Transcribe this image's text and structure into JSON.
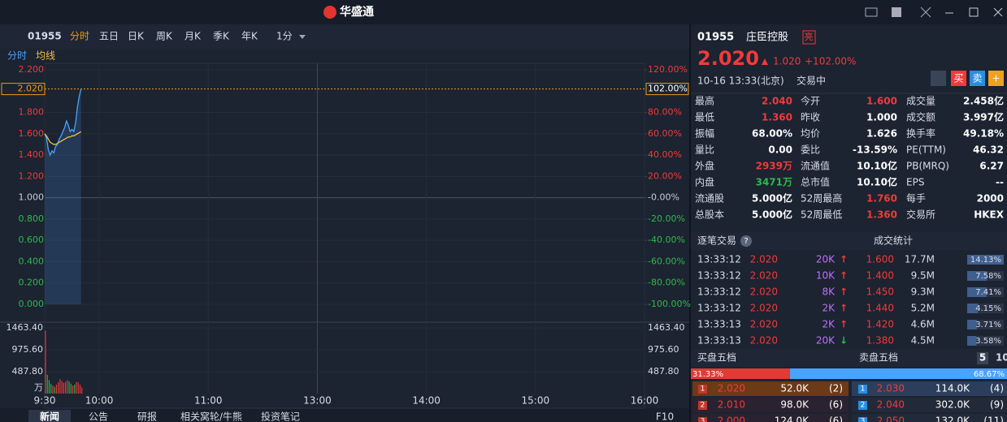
{
  "app": {
    "logo": "华盛通"
  },
  "toolbar": {
    "code": "01955",
    "tabs": [
      "分时",
      "五日",
      "日K",
      "周K",
      "月K",
      "季K",
      "年K"
    ],
    "interval": "1分"
  },
  "chart_data": {
    "type": "line",
    "x": [
      0,
      1,
      2,
      3,
      4,
      5,
      6,
      7,
      8,
      9,
      10,
      11,
      12,
      13,
      14,
      15,
      16,
      17,
      18,
      19,
      20
    ],
    "series": [
      {
        "name": "分时",
        "color": "#4aa3ff",
        "values": [
          1.6,
          1.56,
          1.45,
          1.4,
          1.44,
          1.42,
          1.48,
          1.5,
          1.55,
          1.58,
          1.62,
          1.66,
          1.72,
          1.68,
          1.62,
          1.64,
          1.62,
          1.7,
          1.85,
          1.95,
          2.02
        ]
      },
      {
        "name": "均线",
        "color": "#f0c040",
        "values": [
          1.6,
          1.58,
          1.55,
          1.52,
          1.51,
          1.5,
          1.5,
          1.51,
          1.52,
          1.53,
          1.54,
          1.55,
          1.56,
          1.57,
          1.57,
          1.58,
          1.58,
          1.59,
          1.6,
          1.61,
          1.62
        ]
      }
    ],
    "xlim": [
      0,
      330
    ],
    "xticks": [
      {
        "value": 0,
        "label": "9:30"
      },
      {
        "value": 30,
        "label": "10:00"
      },
      {
        "value": 90,
        "label": "11:00"
      },
      {
        "value": 150,
        "label": "13:00"
      },
      {
        "value": 210,
        "label": "14:00"
      },
      {
        "value": 270,
        "label": "15:00"
      },
      {
        "value": 330,
        "label": "16:00"
      }
    ],
    "ylim": [
      0,
      2.2
    ],
    "yticks": [
      {
        "value": 2.2,
        "label": "2.200"
      },
      {
        "value": 1.8,
        "label": "1.800"
      },
      {
        "value": 1.6,
        "label": "1.600"
      },
      {
        "value": 1.4,
        "label": "1.400"
      },
      {
        "value": 1.2,
        "label": "1.200"
      },
      {
        "value": 1,
        "label": "1.000"
      },
      {
        "value": 0.8,
        "label": "0.800"
      },
      {
        "value": 0.6,
        "label": "0.600"
      },
      {
        "value": 0.4,
        "label": "0.400"
      },
      {
        "value": 0.2,
        "label": "0.200"
      },
      {
        "value": 0,
        "label": "0.000"
      }
    ],
    "y2lim": [
      -100,
      120
    ],
    "y2ticks": [
      {
        "value": 120,
        "label": "120.00%"
      },
      {
        "value": 80,
        "label": "80.00%"
      },
      {
        "value": 60,
        "label": "60.00%"
      },
      {
        "value": 40,
        "label": "40.00%"
      },
      {
        "value": 20,
        "label": "20.00%"
      },
      {
        "value": 0,
        "label": "-0.00%"
      },
      {
        "value": -20,
        "label": "-20.00%"
      },
      {
        "value": -40,
        "label": "-40.00%"
      },
      {
        "value": -60,
        "label": "-60.00%"
      },
      {
        "value": -80,
        "label": "-80.00%"
      },
      {
        "value": -100,
        "label": "-100.00%"
      }
    ],
    "last": {
      "value": 2.02,
      "label": "2.020"
    },
    "last_pct": {
      "value": 102,
      "label": "102.00%"
    },
    "volume": {
      "values": [
        1400,
        420,
        300,
        220,
        180,
        150,
        200,
        250,
        320,
        280,
        240,
        260,
        300,
        270,
        220,
        180,
        200,
        260,
        250,
        200,
        140
      ],
      "ylim": [
        0,
        1463.4
      ],
      "yticks": [
        {
          "value": 1463.4,
          "label": "1463.40"
        },
        {
          "value": 975.6,
          "label": "975.60"
        },
        {
          "value": 487.8,
          "label": "487.80"
        }
      ],
      "unit": "万",
      "up_color": "#f23a3a",
      "down_color": "#2dbb4b"
    }
  },
  "bottom_tabs": [
    "新闻",
    "公告",
    "研报",
    "相关窝轮/牛熊",
    "投资笔记",
    "F10"
  ],
  "quote": {
    "code": "01955",
    "name": "庄臣控股",
    "badge": "亮",
    "price": "2.020",
    "change": "1.020",
    "change_pct": "+102.00%",
    "time": "10-16  13:33(北京)",
    "status": "交易中",
    "buy": "买",
    "sell": "卖",
    "add": "+"
  },
  "stats": [
    [
      [
        "最高",
        "2.040"
      ],
      [
        "今开",
        "1.600"
      ],
      [
        "成交量",
        "2.458亿"
      ]
    ],
    [
      [
        "最低",
        "1.360"
      ],
      [
        "昨收",
        "1.000"
      ],
      [
        "成交额",
        "3.997亿"
      ]
    ],
    [
      [
        "振幅",
        "68.00%"
      ],
      [
        "均价",
        "1.626"
      ],
      [
        "换手率",
        "49.18%"
      ]
    ],
    [
      [
        "量比",
        "0.00"
      ],
      [
        "委比",
        "-13.59%"
      ],
      [
        "PE(TTM)",
        "46.32"
      ]
    ],
    [
      [
        "外盘",
        "2939万"
      ],
      [
        "流通值",
        "10.10亿"
      ],
      [
        "PB(MRQ)",
        "6.27"
      ]
    ],
    [
      [
        "内盘",
        "3471万"
      ],
      [
        "总市值",
        "10.10亿"
      ],
      [
        "EPS",
        "--"
      ]
    ],
    [
      [
        "流通股",
        "5.000亿"
      ],
      [
        "52周最高",
        "1.760"
      ],
      [
        "每手",
        "2000"
      ]
    ],
    [
      [
        "总股本",
        "5.000亿"
      ],
      [
        "52周最低",
        "1.360"
      ],
      [
        "交易所",
        "HKEX"
      ]
    ]
  ],
  "trades": {
    "title": "逐笔交易",
    "help": "?",
    "stats_title": "成交统计",
    "rows": [
      [
        "13:33:12",
        "2.020",
        "20K",
        "↑"
      ],
      [
        "13:33:12",
        "2.020",
        "10K",
        "↑"
      ],
      [
        "13:33:12",
        "2.020",
        "8K",
        "↑"
      ],
      [
        "13:33:12",
        "2.020",
        "2K",
        "↑"
      ],
      [
        "13:33:13",
        "2.020",
        "2K",
        "↑"
      ],
      [
        "13:33:13",
        "2.020",
        "20K",
        "↓"
      ]
    ],
    "stat_rows": [
      [
        "1.600",
        "17.7M",
        {
          "value": 14.13,
          "label": "14.13%"
        }
      ],
      [
        "1.400",
        "9.5M",
        {
          "value": 7.58,
          "label": "7.58%"
        }
      ],
      [
        "1.450",
        "9.3M",
        {
          "value": 7.41,
          "label": "7.41%"
        }
      ],
      [
        "1.440",
        "5.2M",
        {
          "value": 4.15,
          "label": "4.15%"
        }
      ],
      [
        "1.420",
        "4.6M",
        {
          "value": 3.71,
          "label": "3.71%"
        }
      ],
      [
        "1.380",
        "4.5M",
        {
          "value": 3.58,
          "label": "3.58%"
        }
      ]
    ]
  },
  "orderbook": {
    "buy_title": "买盘五档",
    "sell_title": "卖盘五档",
    "depth5": "5",
    "depth10": "10",
    "buy_ratio": {
      "value": 31.33,
      "label": "31.33%"
    },
    "sell_ratio": {
      "value": 68.67,
      "label": "68.67%"
    },
    "buy": [
      [
        "1",
        "2.020",
        "52.0K",
        "(2)"
      ],
      [
        "2",
        "2.010",
        "98.0K",
        "(6)"
      ],
      [
        "3",
        "2.000",
        "124.0K",
        "(6)"
      ]
    ],
    "sell": [
      [
        "1",
        "2.030",
        "114.0K",
        "(4)"
      ],
      [
        "2",
        "2.040",
        "302.0K",
        "(9)"
      ],
      [
        "3",
        "2.050",
        "132.0K",
        "(11)"
      ]
    ]
  }
}
